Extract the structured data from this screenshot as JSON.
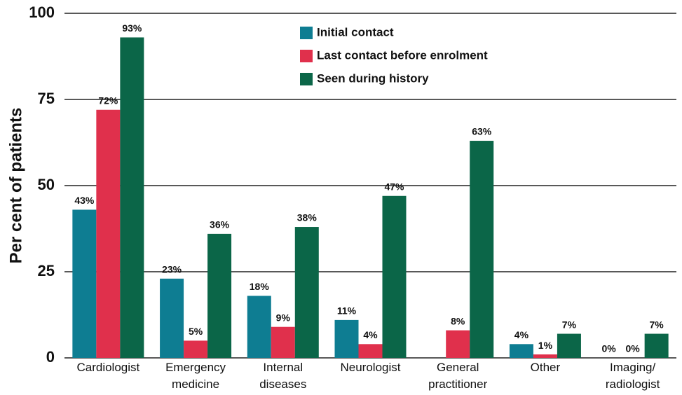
{
  "chart_data": {
    "type": "bar",
    "y_label": "Per cent of patients",
    "categories": [
      [
        "Cardiologist"
      ],
      [
        "Emergency",
        "medicine"
      ],
      [
        "Internal",
        "diseases"
      ],
      [
        "Neurologist"
      ],
      [
        "General",
        "practitioner"
      ],
      [
        "Other"
      ],
      [
        "Imaging/",
        "radiologist"
      ]
    ],
    "series": [
      {
        "name": "Initial contact",
        "color": "#0e7d92",
        "values": [
          43,
          23,
          18,
          11,
          null,
          4,
          0
        ],
        "value_labels": [
          "43%",
          "23%",
          "18%",
          "11%",
          null,
          "4%",
          "0%"
        ]
      },
      {
        "name": "Last contact before enrolment",
        "color": "#e0304c",
        "values": [
          72,
          5,
          9,
          4,
          8,
          1,
          0
        ],
        "value_labels": [
          "72%",
          "5%",
          "9%",
          "4%",
          "8%",
          "1%",
          "0%"
        ]
      },
      {
        "name": "Seen during history",
        "color": "#0b6648",
        "values": [
          93,
          36,
          38,
          47,
          63,
          7,
          7
        ],
        "value_labels": [
          "93%",
          "36%",
          "38%",
          "47%",
          "63%",
          "7%",
          "7%"
        ]
      }
    ],
    "ylim": [
      0,
      100
    ],
    "yticks": [
      0,
      25,
      50,
      75,
      100
    ],
    "grid": true
  }
}
